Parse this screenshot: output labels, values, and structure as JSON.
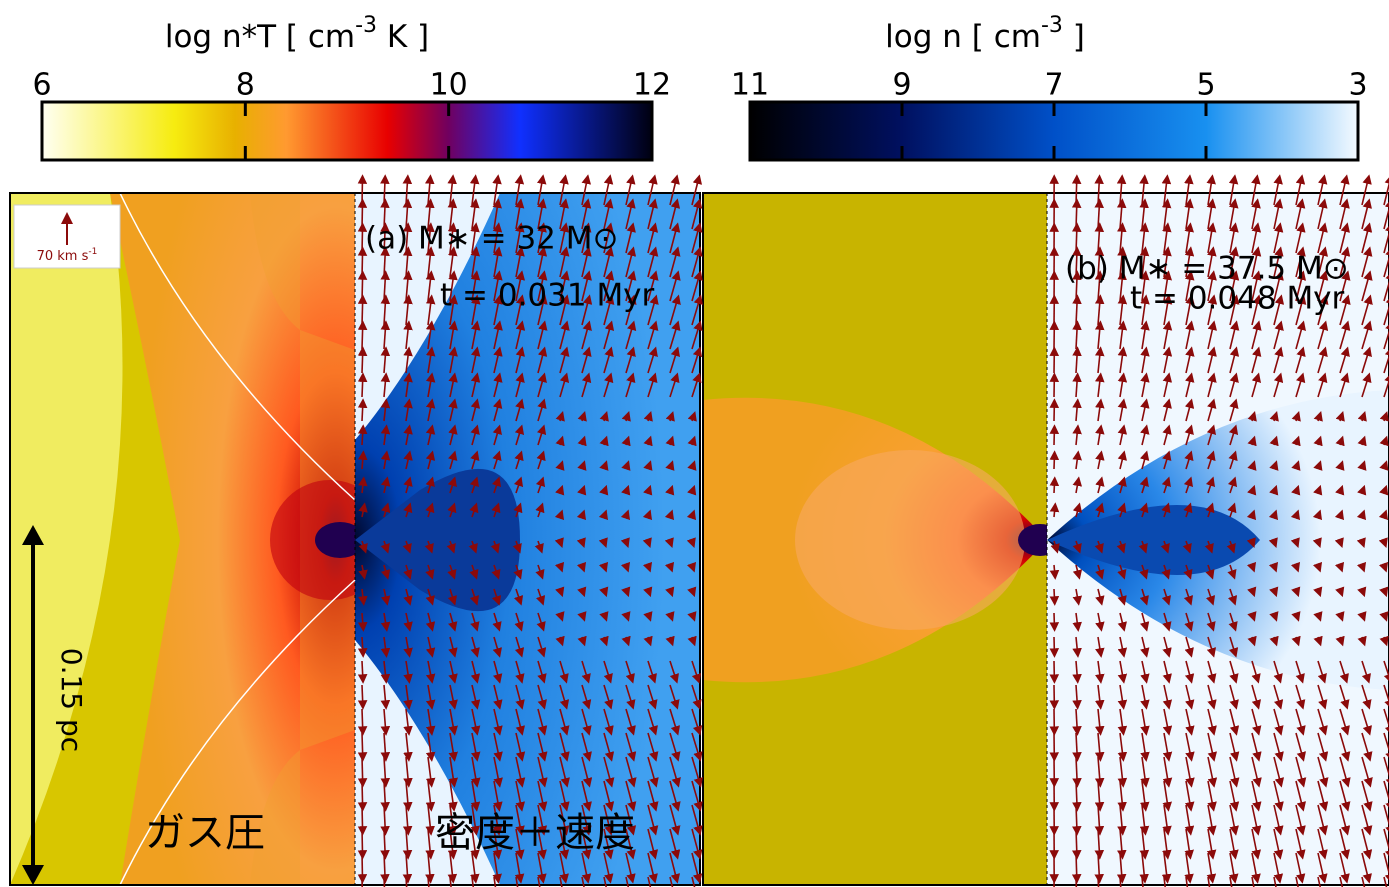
{
  "colorbars": [
    {
      "label": {
        "text": "log n*T  [ cm",
        "sup": "-3",
        "tail": " K ]"
      },
      "lim": [
        6,
        12
      ],
      "ticks": [
        6,
        8,
        10,
        12
      ],
      "colors": [
        {
          "value": 6,
          "color": "#fffff2"
        },
        {
          "value": 7.3,
          "color": "#f6ec10"
        },
        {
          "value": 7.9,
          "color": "#e8b000"
        },
        {
          "value": 8.4,
          "color": "#ff9a30"
        },
        {
          "value": 9.4,
          "color": "#e80000"
        },
        {
          "value": 10,
          "color": "#700060"
        },
        {
          "value": 10.7,
          "color": "#1030ff"
        },
        {
          "value": 12,
          "color": "#000010"
        }
      ]
    },
    {
      "label": {
        "text": "log n   [ cm",
        "sup": "-3",
        "tail": " ]"
      },
      "lim": [
        11,
        3
      ],
      "ticks": [
        11,
        9,
        7,
        5,
        3
      ],
      "colors": [
        {
          "value": 11,
          "color": "#000000"
        },
        {
          "value": 9,
          "color": "#001060"
        },
        {
          "value": 7,
          "color": "#0050c8"
        },
        {
          "value": 5,
          "color": "#1890f0"
        },
        {
          "value": 3,
          "color": "#f4faff"
        }
      ]
    }
  ],
  "panels": [
    {
      "label": "(a) M∗ =  32 M⊙",
      "time": "t = 0.031 Myr"
    },
    {
      "label": "(b) M∗ = 37.5 M⊙",
      "time": "t = 0.048 Myr"
    }
  ],
  "velocity_key": {
    "text": "70 km s",
    "sup": "-1"
  },
  "scale_bar": "0.15 pc",
  "left_label": "ガス圧",
  "right_label": "密度＋速度"
}
